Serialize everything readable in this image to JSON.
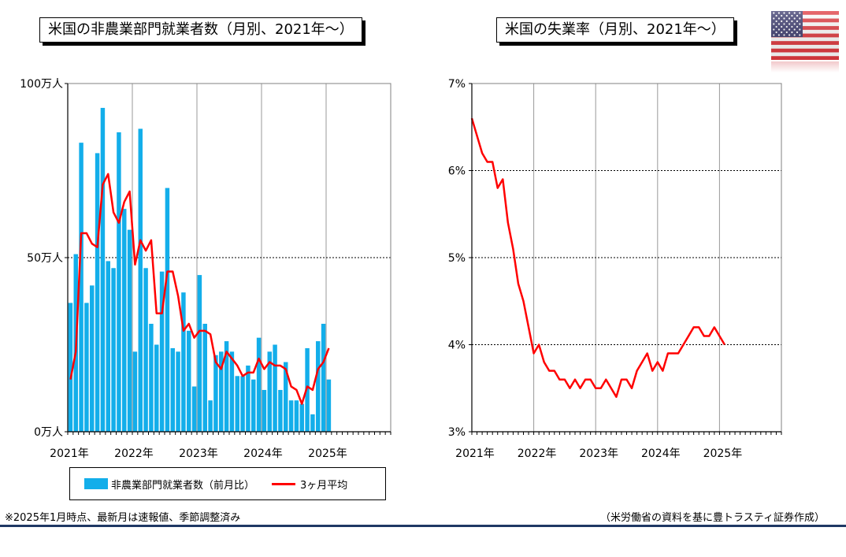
{
  "flag": {
    "icon": "us-flag-icon",
    "colors": {
      "stripe_red": "#E0383E",
      "canton_blue": "#3C3B6E"
    }
  },
  "colors": {
    "bar": "#13AEEA",
    "line": "#FF0000",
    "rule": "#1F3864"
  },
  "footer": {
    "left_note": "※2025年1月時点、最新月は速報値、季節調整済み",
    "right_note": "（米労働省の資料を基に豊トラスティ証券作成）"
  },
  "chart_data": [
    {
      "type": "bar",
      "title": "米国の非農業部門就業者数（月別、2021年～）",
      "ylabel": "",
      "y_ticks": [
        "100万人",
        "50万人",
        "0万人"
      ],
      "ylim": [
        0,
        100
      ],
      "x_ticks": [
        "2021年",
        "2022年",
        "2023年",
        "2024年",
        "2025年"
      ],
      "grid": true,
      "legend_position": "bottom",
      "series": [
        {
          "name": "非農業部門就業者数（前月比）",
          "kind": "bar",
          "values": [
            37,
            51,
            83,
            37,
            42,
            80,
            93,
            49,
            47,
            86,
            64,
            58,
            23,
            87,
            47,
            31,
            25,
            46,
            70,
            24,
            23,
            40,
            29,
            13,
            45,
            31,
            9,
            22,
            23,
            26,
            23,
            16,
            16,
            19,
            15,
            27,
            12,
            23,
            25,
            12,
            20,
            9,
            9,
            8,
            24,
            5,
            26,
            31,
            15
          ]
        },
        {
          "name": "3ヶ月平均",
          "kind": "line",
          "values": [
            15,
            23,
            57,
            57,
            54,
            53,
            71,
            74,
            63,
            60,
            66,
            69,
            48,
            55,
            52,
            55,
            34,
            34,
            46,
            46,
            39,
            29,
            31,
            27,
            29,
            29,
            28,
            20,
            18,
            23,
            21,
            19,
            16,
            17,
            17,
            21,
            18,
            20,
            19,
            19,
            18,
            13,
            12,
            8,
            13,
            12,
            18,
            20,
            24
          ]
        }
      ]
    },
    {
      "type": "line",
      "title": "米国の失業率（月別、2021年～）",
      "ylabel": "",
      "y_ticks": [
        "7%",
        "6%",
        "5%",
        "4%",
        "3%"
      ],
      "ylim": [
        3,
        7
      ],
      "x_ticks": [
        "2021年",
        "2022年",
        "2023年",
        "2024年",
        "2025年"
      ],
      "grid": true,
      "series": [
        {
          "kind": "line",
          "values": [
            6.6,
            6.4,
            6.2,
            6.1,
            6.1,
            5.8,
            5.9,
            5.4,
            5.1,
            4.7,
            4.5,
            4.2,
            3.9,
            4.0,
            3.8,
            3.7,
            3.7,
            3.6,
            3.6,
            3.5,
            3.6,
            3.5,
            3.6,
            3.6,
            3.5,
            3.5,
            3.6,
            3.5,
            3.4,
            3.6,
            3.6,
            3.5,
            3.7,
            3.8,
            3.9,
            3.7,
            3.8,
            3.7,
            3.9,
            3.9,
            3.9,
            4.0,
            4.1,
            4.2,
            4.2,
            4.1,
            4.1,
            4.2,
            4.1,
            4.0
          ]
        }
      ]
    }
  ]
}
